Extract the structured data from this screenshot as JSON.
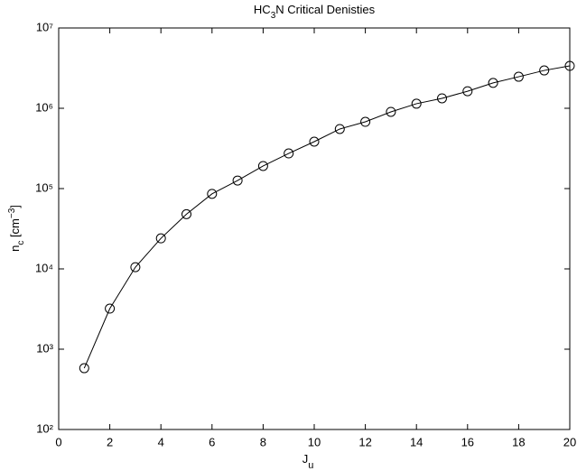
{
  "chart_data": {
    "type": "line",
    "title": [
      "HC",
      "3",
      "N Critical Denisties"
    ],
    "xlabel": [
      "J",
      "u"
    ],
    "ylabel": [
      "n",
      "c",
      " [cm",
      "−3",
      "]"
    ],
    "x": [
      1,
      2,
      3,
      4,
      5,
      6,
      7,
      8,
      9,
      10,
      11,
      12,
      13,
      14,
      15,
      16,
      17,
      18,
      19,
      20
    ],
    "series": [
      {
        "color": "#000000",
        "marker": "circle",
        "values": [
          580,
          3200,
          10500,
          24000,
          48000,
          86000,
          126000,
          191000,
          274000,
          384000,
          552000,
          678000,
          902000,
          1140000,
          1330000,
          1630000,
          2070000,
          2470000,
          2960000,
          3370000
        ]
      }
    ],
    "xlim": [
      0,
      20
    ],
    "xticks": [
      0,
      2,
      4,
      6,
      8,
      10,
      12,
      14,
      16,
      18,
      20
    ],
    "ylim": [
      100,
      10000000
    ],
    "ylog": true,
    "yticks": [
      {
        "value": 100,
        "label": "10²"
      },
      {
        "value": 1000,
        "label": "10³"
      },
      {
        "value": 10000,
        "label": "10⁴"
      },
      {
        "value": 100000,
        "label": "10⁵"
      },
      {
        "value": 1000000,
        "label": "10⁶"
      },
      {
        "value": 10000000,
        "label": "10⁷"
      }
    ]
  }
}
